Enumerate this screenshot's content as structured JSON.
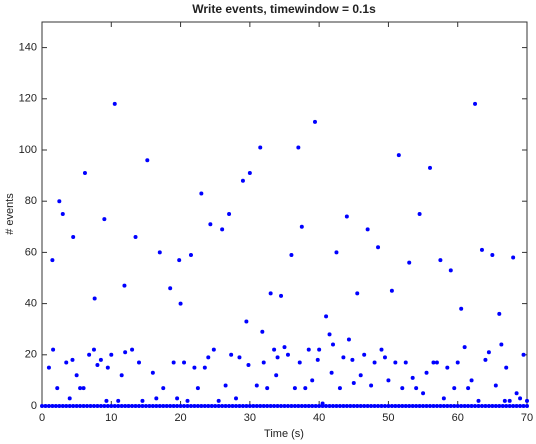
{
  "chart_data": {
    "type": "scatter",
    "title": "Write events, timewindow = 0.1s",
    "xlabel": "Time (s)",
    "ylabel": "# events",
    "color": "#0000ff",
    "xlim": [
      0,
      70
    ],
    "ylim": [
      0,
      150
    ],
    "xticks": [
      0,
      10,
      20,
      30,
      40,
      50,
      60,
      70
    ],
    "yticks": [
      0,
      20,
      40,
      60,
      80,
      100,
      120,
      140
    ],
    "x": [
      0,
      0.5,
      1,
      1.5,
      2,
      2.5,
      3,
      3.5,
      4,
      4.5,
      5,
      5.5,
      6,
      6.5,
      7,
      7.5,
      8,
      8.5,
      9,
      9.5,
      10,
      10.5,
      11,
      11.5,
      12,
      12.5,
      13,
      13.5,
      14,
      14.5,
      15,
      15.5,
      16,
      16.5,
      17,
      17.5,
      18,
      18.5,
      19,
      19.5,
      20,
      20.5,
      21,
      21.5,
      22,
      22.5,
      23,
      23.5,
      24,
      24.5,
      25,
      25.5,
      26,
      26.5,
      27,
      27.5,
      28,
      28.5,
      29,
      29.5,
      30,
      30.5,
      31,
      31.5,
      32,
      32.5,
      33,
      33.5,
      34,
      34.5,
      35,
      35.5,
      36,
      36.5,
      37,
      37.5,
      38,
      38.5,
      39,
      39.5,
      40,
      40.5,
      41,
      41.5,
      42,
      42.5,
      43,
      43.5,
      44,
      44.5,
      45,
      45.5,
      46,
      46.5,
      47,
      47.5,
      48,
      48.5,
      49,
      49.5,
      50,
      50.5,
      51,
      51.5,
      52,
      52.5,
      53,
      53.5,
      54,
      54.5,
      55,
      55.5,
      56,
      56.5,
      57,
      57.5,
      58,
      58.5,
      59,
      59.5,
      60,
      60.5,
      61,
      61.5,
      62,
      62.5,
      63,
      63.5,
      64,
      64.5,
      65,
      65.5,
      66,
      66.5,
      67,
      67.5,
      68,
      68.5,
      69,
      69.5,
      70,
      1.5,
      1.6,
      2.5,
      3,
      2.2,
      1,
      3.5,
      4.5,
      4.4,
      4,
      5,
      5.5,
      6.2,
      6,
      6.8,
      7.6,
      7.5,
      8,
      8.5,
      9,
      9.3,
      9.5,
      10,
      10.5,
      11,
      11.5,
      11.9,
      12,
      13,
      13.5,
      14,
      14.5,
      15.2,
      16,
      16.5,
      17,
      17.5,
      18.5,
      19,
      19.5,
      19.8,
      20,
      20.5,
      21.5,
      21,
      22,
      22.5,
      23,
      23.5,
      24,
      24.3,
      24.8,
      25.5,
      26,
      26.5,
      27,
      27.3,
      28,
      28.5,
      29,
      29.5,
      29.8,
      30,
      31,
      31.5,
      31.8,
      32,
      32.5,
      33,
      33.5,
      33.8,
      34,
      34.5,
      35,
      35.5,
      36,
      36.5,
      37,
      37.5,
      37.2,
      38,
      38.5,
      39,
      39.4,
      39.8,
      40,
      40.5,
      41,
      41.5,
      41.8,
      42,
      42.5,
      43,
      43.5,
      44,
      44.3,
      44.8,
      45,
      45.5,
      46,
      46.5,
      47,
      47.5,
      48,
      48.5,
      49,
      49.5,
      50,
      50.5,
      51,
      51.5,
      52,
      52.5,
      53,
      53.5,
      54,
      54.5,
      55,
      55.5,
      56,
      56.5,
      57,
      57.5,
      58,
      58.5,
      59,
      59.5,
      60,
      60.5,
      61,
      61.5,
      62,
      62.5,
      63,
      63.5,
      64,
      64.5,
      65,
      65.5,
      66,
      66.3,
      66.8,
      67,
      67.5,
      68,
      68.5,
      69,
      69.5,
      70
    ],
    "values": [
      0,
      0,
      0,
      0,
      0,
      0,
      0,
      0,
      0,
      0,
      0,
      0,
      0,
      0,
      0,
      0,
      0,
      0,
      0,
      0,
      0,
      0,
      0,
      0,
      0,
      0,
      0,
      0,
      0,
      0,
      0,
      0,
      0,
      0,
      0,
      0,
      0,
      0,
      0,
      0,
      0,
      0,
      0,
      0,
      0,
      0,
      0,
      0,
      0,
      0,
      0,
      0,
      0,
      0,
      0,
      0,
      0,
      0,
      0,
      0,
      0,
      0,
      0,
      0,
      0,
      0,
      0,
      0,
      0,
      0,
      0,
      0,
      0,
      0,
      0,
      0,
      0,
      0,
      0,
      0,
      0,
      0,
      0,
      0,
      0,
      0,
      0,
      0,
      0,
      0,
      0,
      0,
      0,
      0,
      0,
      0,
      0,
      0,
      0,
      0,
      0,
      0,
      0,
      0,
      0,
      0,
      0,
      0,
      0,
      0,
      0,
      0,
      0,
      0,
      0,
      0,
      0,
      0,
      0,
      0,
      0,
      0,
      0,
      0,
      0,
      0,
      0,
      0,
      0,
      0,
      0,
      0,
      0,
      0,
      0,
      0,
      0,
      0,
      0,
      0,
      0,
      57,
      22,
      80,
      75,
      7,
      15,
      17,
      66,
      18,
      3,
      12,
      7,
      91,
      7,
      20,
      42,
      22,
      16,
      18,
      73,
      2,
      15,
      20,
      118,
      2,
      12,
      47,
      21,
      22,
      66,
      17,
      2,
      96,
      13,
      3,
      60,
      7,
      46,
      17,
      3,
      57,
      40,
      17,
      59,
      2,
      15,
      7,
      83,
      15,
      19,
      71,
      22,
      2,
      69,
      8,
      75,
      20,
      3,
      19,
      88,
      33,
      16,
      91,
      8,
      101,
      29,
      17,
      7,
      44,
      22,
      12,
      19,
      43,
      23,
      20,
      59,
      7,
      101,
      70,
      17,
      7,
      22,
      10,
      111,
      18,
      22,
      1,
      35,
      28,
      13,
      24,
      60,
      7,
      19,
      74,
      26,
      18,
      9,
      44,
      12,
      20,
      69,
      8,
      17,
      62,
      22,
      19,
      10,
      45,
      17,
      98,
      7,
      17,
      56,
      11,
      7,
      75,
      5,
      13,
      93,
      17,
      17,
      57,
      3,
      15,
      53,
      7,
      17,
      38,
      23,
      7,
      10,
      118,
      2,
      61,
      18,
      21,
      59,
      8,
      36,
      24,
      2,
      15,
      2,
      58,
      5,
      3,
      20,
      2
    ]
  }
}
